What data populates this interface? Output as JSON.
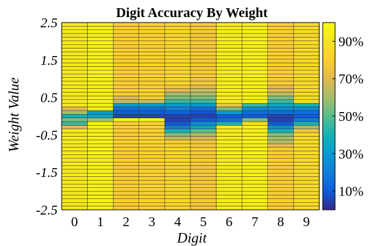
{
  "chart_data": {
    "type": "heatmap",
    "title": "Digit Accuracy By Weight",
    "xlabel": "Digit",
    "ylabel": "Weight Value",
    "x_categories": [
      "0",
      "1",
      "2",
      "3",
      "4",
      "5",
      "6",
      "7",
      "8",
      "9"
    ],
    "y_tick_labels": [
      "2.5",
      "1.5",
      "0.5",
      "-0.5",
      "-1.5",
      "-2.5"
    ],
    "y_tick_values": [
      2.5,
      1.5,
      0.5,
      -0.5,
      -1.5,
      -2.5
    ],
    "ylim": [
      -2.5,
      2.5
    ],
    "y_rows": 51,
    "colorbar": {
      "tick_labels": [
        "90%",
        "70%",
        "50%",
        "30%",
        "10%"
      ],
      "tick_values": [
        90,
        70,
        50,
        30,
        10
      ],
      "range": [
        0,
        100
      ]
    },
    "series": [
      {
        "digit": "0",
        "dips": [
          {
            "w": 0.2,
            "v": 70
          },
          {
            "w": 0.1,
            "v": 60
          },
          {
            "w": 0.0,
            "v": 40
          },
          {
            "w": -0.1,
            "v": 55
          },
          {
            "w": -0.2,
            "v": 45
          },
          {
            "w": -0.3,
            "v": 70
          }
        ],
        "base": 92
      },
      {
        "digit": "1",
        "dips": [
          {
            "w": 0.1,
            "v": 30
          },
          {
            "w": 0.0,
            "v": 35
          },
          {
            "w": -0.1,
            "v": 60
          }
        ],
        "base": 95
      },
      {
        "digit": "2",
        "dips": [
          {
            "w": 0.5,
            "v": 70
          },
          {
            "w": 0.4,
            "v": 65
          },
          {
            "w": 0.3,
            "v": 30
          },
          {
            "w": 0.2,
            "v": 15
          },
          {
            "w": 0.1,
            "v": 10
          },
          {
            "w": 0.0,
            "v": 5
          },
          {
            "w": -0.1,
            "v": 96
          }
        ],
        "base": 80
      },
      {
        "digit": "3",
        "dips": [
          {
            "w": 0.4,
            "v": 65
          },
          {
            "w": 0.3,
            "v": 30
          },
          {
            "w": 0.2,
            "v": 15
          },
          {
            "w": 0.1,
            "v": 10
          },
          {
            "w": 0.0,
            "v": 5
          },
          {
            "w": -0.1,
            "v": 96
          }
        ],
        "base": 82
      },
      {
        "digit": "4",
        "dips": [
          {
            "w": 0.8,
            "v": 78
          },
          {
            "w": 0.7,
            "v": 70
          },
          {
            "w": 0.6,
            "v": 60
          },
          {
            "w": 0.5,
            "v": 55
          },
          {
            "w": 0.4,
            "v": 45
          },
          {
            "w": 0.3,
            "v": 30
          },
          {
            "w": 0.2,
            "v": 20
          },
          {
            "w": 0.1,
            "v": 12
          },
          {
            "w": 0.0,
            "v": 5
          },
          {
            "w": -0.1,
            "v": 5
          },
          {
            "w": -0.2,
            "v": 10
          },
          {
            "w": -0.3,
            "v": 20
          },
          {
            "w": -0.4,
            "v": 40
          },
          {
            "w": -0.5,
            "v": 55
          },
          {
            "w": -0.6,
            "v": 65
          },
          {
            "w": -0.7,
            "v": 78
          }
        ],
        "base": 84
      },
      {
        "digit": "5",
        "dips": [
          {
            "w": 0.8,
            "v": 72
          },
          {
            "w": 0.7,
            "v": 65
          },
          {
            "w": 0.6,
            "v": 60
          },
          {
            "w": 0.5,
            "v": 55
          },
          {
            "w": 0.4,
            "v": 45
          },
          {
            "w": 0.3,
            "v": 30
          },
          {
            "w": 0.2,
            "v": 15
          },
          {
            "w": 0.1,
            "v": 8
          },
          {
            "w": 0.0,
            "v": 5
          },
          {
            "w": -0.1,
            "v": 10
          },
          {
            "w": -0.2,
            "v": 25
          },
          {
            "w": -0.3,
            "v": 35
          },
          {
            "w": -0.4,
            "v": 50
          },
          {
            "w": -0.5,
            "v": 60
          },
          {
            "w": -0.6,
            "v": 68
          },
          {
            "w": -0.7,
            "v": 75
          }
        ],
        "base": 78
      },
      {
        "digit": "6",
        "dips": [
          {
            "w": 0.3,
            "v": 75
          },
          {
            "w": 0.2,
            "v": 55
          },
          {
            "w": 0.1,
            "v": 30
          },
          {
            "w": 0.0,
            "v": 10
          },
          {
            "w": -0.1,
            "v": 15
          },
          {
            "w": -0.2,
            "v": 40
          }
        ],
        "base": 94
      },
      {
        "digit": "7",
        "dips": [
          {
            "w": 0.3,
            "v": 45
          },
          {
            "w": 0.2,
            "v": 25
          },
          {
            "w": 0.1,
            "v": 15
          },
          {
            "w": 0.0,
            "v": 10
          },
          {
            "w": -0.1,
            "v": 55
          },
          {
            "w": -0.2,
            "v": 85
          }
        ],
        "base": 95
      },
      {
        "digit": "8",
        "dips": [
          {
            "w": 0.8,
            "v": 72
          },
          {
            "w": 0.7,
            "v": 70
          },
          {
            "w": 0.6,
            "v": 65
          },
          {
            "w": 0.5,
            "v": 55
          },
          {
            "w": 0.4,
            "v": 45
          },
          {
            "w": 0.3,
            "v": 35
          },
          {
            "w": 0.2,
            "v": 25
          },
          {
            "w": 0.1,
            "v": 15
          },
          {
            "w": 0.0,
            "v": 5
          },
          {
            "w": -0.1,
            "v": 5
          },
          {
            "w": -0.2,
            "v": 10
          },
          {
            "w": -0.3,
            "v": 25
          },
          {
            "w": -0.4,
            "v": 40
          },
          {
            "w": -0.5,
            "v": 55
          },
          {
            "w": -0.6,
            "v": 60
          },
          {
            "w": -0.7,
            "v": 62
          },
          {
            "w": -0.8,
            "v": 72
          }
        ],
        "base": 80
      },
      {
        "digit": "9",
        "dips": [
          {
            "w": 0.3,
            "v": 40
          },
          {
            "w": 0.2,
            "v": 25
          },
          {
            "w": 0.1,
            "v": 15
          },
          {
            "w": 0.0,
            "v": 10
          },
          {
            "w": -0.1,
            "v": 20
          },
          {
            "w": -0.2,
            "v": 40
          },
          {
            "w": -0.3,
            "v": 60
          },
          {
            "w": -0.4,
            "v": 75
          }
        ],
        "base": 86
      }
    ]
  }
}
